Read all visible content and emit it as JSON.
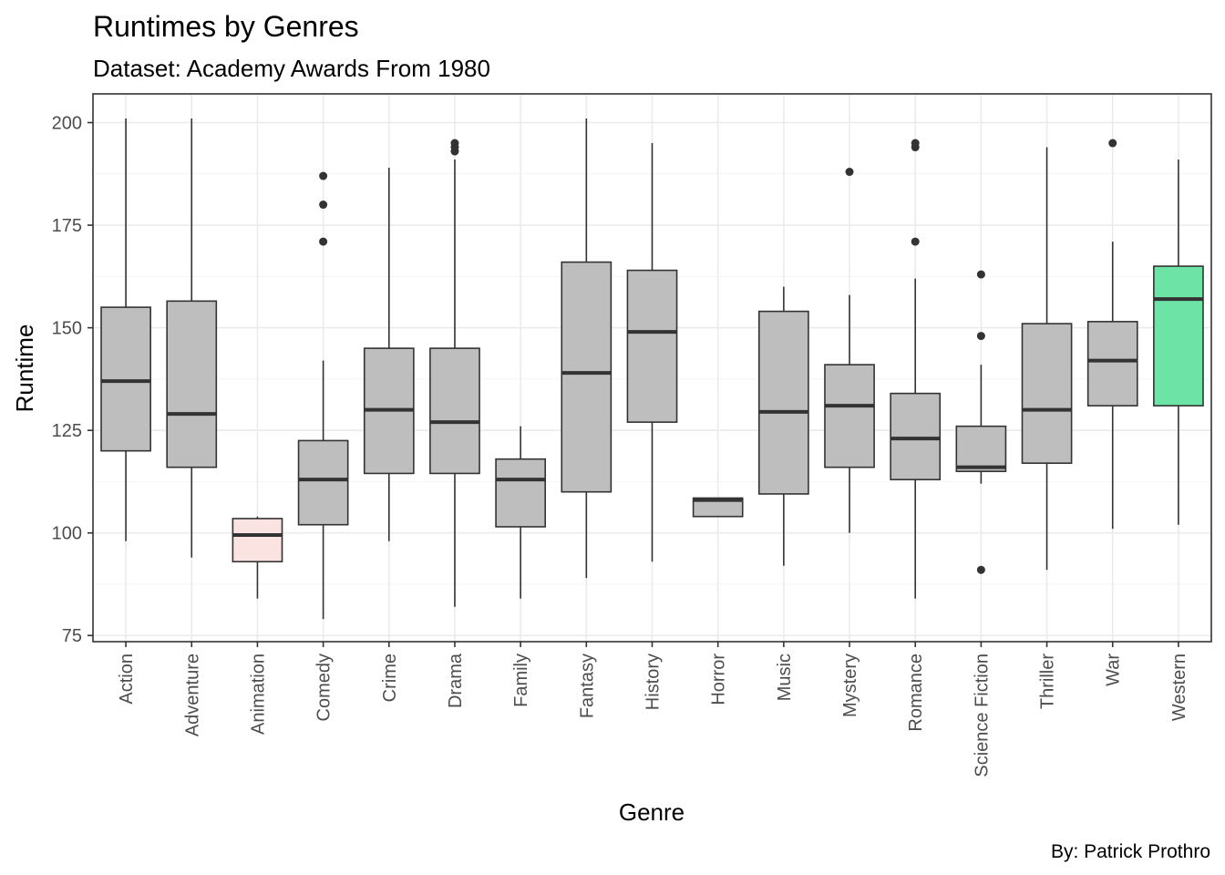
{
  "chart_data": {
    "type": "boxplot",
    "title": "Runtimes by Genres",
    "subtitle": "Dataset: Academy Awards From 1980",
    "xlabel": "Genre",
    "ylabel": "Runtime",
    "caption": "By: Patrick Prothro",
    "ylim": [
      73.5,
      207
    ],
    "y_ticks": [
      75,
      100,
      125,
      150,
      175,
      200
    ],
    "grid": true,
    "colors": {
      "box_default": "#bebebe",
      "box_animation": "#fae3e1",
      "box_western": "#6de3a6",
      "outline": "#333333",
      "grid_major": "#ebebeb",
      "grid_minor": "#f4f4f4",
      "panel_border": "#333333"
    },
    "categories": [
      "Action",
      "Adventure",
      "Animation",
      "Comedy",
      "Crime",
      "Drama",
      "Family",
      "Fantasy",
      "History",
      "Horror",
      "Music",
      "Mystery",
      "Romance",
      "Science Fiction",
      "Thriller",
      "War",
      "Western"
    ],
    "boxes": [
      {
        "genre": "Action",
        "whisker_low": 98,
        "q1": 120,
        "median": 137,
        "q3": 155,
        "whisker_high": 201,
        "outliers": []
      },
      {
        "genre": "Adventure",
        "whisker_low": 94,
        "q1": 116,
        "median": 129,
        "q3": 156.5,
        "whisker_high": 201,
        "outliers": []
      },
      {
        "genre": "Animation",
        "whisker_low": 84,
        "q1": 93,
        "median": 99.5,
        "q3": 103.5,
        "whisker_high": 104,
        "outliers": []
      },
      {
        "genre": "Comedy",
        "whisker_low": 79,
        "q1": 102,
        "median": 113,
        "q3": 122.5,
        "whisker_high": 142,
        "outliers": [
          171,
          180,
          187
        ]
      },
      {
        "genre": "Crime",
        "whisker_low": 98,
        "q1": 114.5,
        "median": 130,
        "q3": 145,
        "whisker_high": 189,
        "outliers": []
      },
      {
        "genre": "Drama",
        "whisker_low": 82,
        "q1": 114.5,
        "median": 127,
        "q3": 145,
        "whisker_high": 191,
        "outliers": [
          193,
          194,
          195
        ]
      },
      {
        "genre": "Family",
        "whisker_low": 84,
        "q1": 101.5,
        "median": 113,
        "q3": 118,
        "whisker_high": 126,
        "outliers": []
      },
      {
        "genre": "Fantasy",
        "whisker_low": 89,
        "q1": 110,
        "median": 139,
        "q3": 166,
        "whisker_high": 201,
        "outliers": []
      },
      {
        "genre": "History",
        "whisker_low": 93,
        "q1": 127,
        "median": 149,
        "q3": 164,
        "whisker_high": 195,
        "outliers": []
      },
      {
        "genre": "Horror",
        "whisker_low": 104,
        "q1": 104,
        "median": 108,
        "q3": 108.5,
        "whisker_high": 108.5,
        "outliers": []
      },
      {
        "genre": "Music",
        "whisker_low": 92,
        "q1": 109.5,
        "median": 129.5,
        "q3": 154,
        "whisker_high": 160,
        "outliers": []
      },
      {
        "genre": "Mystery",
        "whisker_low": 100,
        "q1": 116,
        "median": 131,
        "q3": 141,
        "whisker_high": 158,
        "outliers": [
          188
        ]
      },
      {
        "genre": "Romance",
        "whisker_low": 84,
        "q1": 113,
        "median": 123,
        "q3": 134,
        "whisker_high": 162,
        "outliers": [
          171,
          194,
          195
        ]
      },
      {
        "genre": "Science Fiction",
        "whisker_low": 112,
        "q1": 115,
        "median": 116,
        "q3": 126,
        "whisker_high": 141,
        "outliers": [
          91,
          148,
          163
        ]
      },
      {
        "genre": "Thriller",
        "whisker_low": 91,
        "q1": 117,
        "median": 130,
        "q3": 151,
        "whisker_high": 194,
        "outliers": []
      },
      {
        "genre": "War",
        "whisker_low": 101,
        "q1": 131,
        "median": 142,
        "q3": 151.5,
        "whisker_high": 171,
        "outliers": [
          195
        ]
      },
      {
        "genre": "Western",
        "whisker_low": 102,
        "q1": 131,
        "median": 157,
        "q3": 165,
        "whisker_high": 191,
        "outliers": []
      }
    ]
  }
}
